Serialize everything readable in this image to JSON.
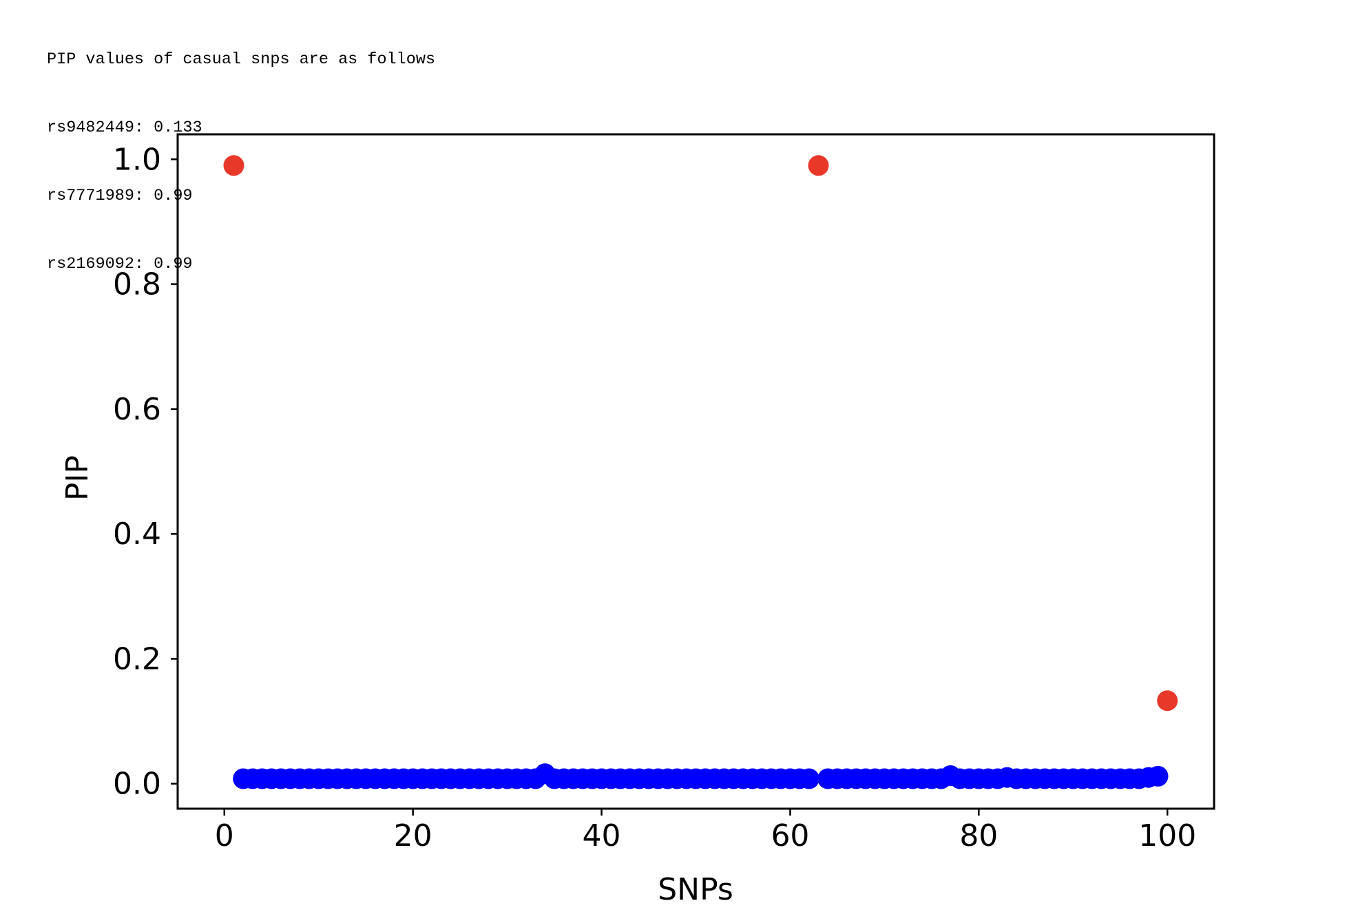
{
  "console": {
    "lines": [
      "PIP values of casual snps are as follows",
      "rs9482449: 0.133",
      "rs7771989: 0.99",
      "rs2169092: 0.99"
    ]
  },
  "chart_data": {
    "type": "scatter",
    "xlabel": "SNPs",
    "ylabel": "PIP",
    "xlim": [
      -4.95,
      104.95
    ],
    "ylim": [
      -0.04,
      1.04
    ],
    "x_ticks": [
      0,
      20,
      40,
      60,
      80,
      100
    ],
    "y_ticks": [
      0.0,
      0.2,
      0.4,
      0.6,
      0.8,
      1.0
    ],
    "x_tick_labels": [
      "0",
      "20",
      "40",
      "60",
      "80",
      "100"
    ],
    "y_tick_labels": [
      "0.0",
      "0.2",
      "0.4",
      "0.6",
      "0.8",
      "1.0"
    ],
    "grid": false,
    "colors": {
      "non_causal": "#0000ff",
      "causal": "#e8382a"
    },
    "series": [
      {
        "color": "#0000ff",
        "x": [
          2,
          3,
          4,
          5,
          6,
          7,
          8,
          9,
          10,
          11,
          12,
          13,
          14,
          15,
          16,
          17,
          18,
          19,
          20,
          21,
          22,
          23,
          24,
          25,
          26,
          27,
          28,
          29,
          30,
          31,
          32,
          33,
          34,
          35,
          36,
          37,
          38,
          39,
          40,
          41,
          42,
          43,
          44,
          45,
          46,
          47,
          48,
          49,
          50,
          51,
          52,
          53,
          54,
          55,
          56,
          57,
          58,
          59,
          60,
          61,
          62,
          64,
          65,
          66,
          67,
          68,
          69,
          70,
          71,
          72,
          73,
          74,
          75,
          76,
          77,
          78,
          79,
          80,
          81,
          82,
          83,
          84,
          85,
          86,
          87,
          88,
          89,
          90,
          91,
          92,
          93,
          94,
          95,
          96,
          97,
          98,
          99
        ],
        "y": [
          0.008,
          0.008,
          0.008,
          0.008,
          0.008,
          0.008,
          0.008,
          0.008,
          0.008,
          0.008,
          0.008,
          0.008,
          0.008,
          0.008,
          0.008,
          0.008,
          0.008,
          0.008,
          0.008,
          0.008,
          0.008,
          0.008,
          0.008,
          0.008,
          0.008,
          0.008,
          0.008,
          0.008,
          0.008,
          0.008,
          0.008,
          0.008,
          0.016,
          0.008,
          0.008,
          0.008,
          0.008,
          0.008,
          0.008,
          0.008,
          0.008,
          0.008,
          0.008,
          0.008,
          0.008,
          0.008,
          0.008,
          0.008,
          0.008,
          0.008,
          0.008,
          0.008,
          0.008,
          0.008,
          0.008,
          0.008,
          0.008,
          0.008,
          0.008,
          0.008,
          0.008,
          0.008,
          0.008,
          0.008,
          0.008,
          0.008,
          0.008,
          0.008,
          0.008,
          0.008,
          0.008,
          0.008,
          0.008,
          0.008,
          0.013,
          0.008,
          0.008,
          0.008,
          0.008,
          0.008,
          0.01,
          0.008,
          0.008,
          0.008,
          0.008,
          0.008,
          0.008,
          0.008,
          0.008,
          0.008,
          0.008,
          0.008,
          0.008,
          0.008,
          0.008,
          0.01,
          0.012
        ]
      },
      {
        "color": "#e8382a",
        "x": [
          1,
          63,
          100
        ],
        "y": [
          0.99,
          0.99,
          0.133
        ]
      }
    ]
  }
}
